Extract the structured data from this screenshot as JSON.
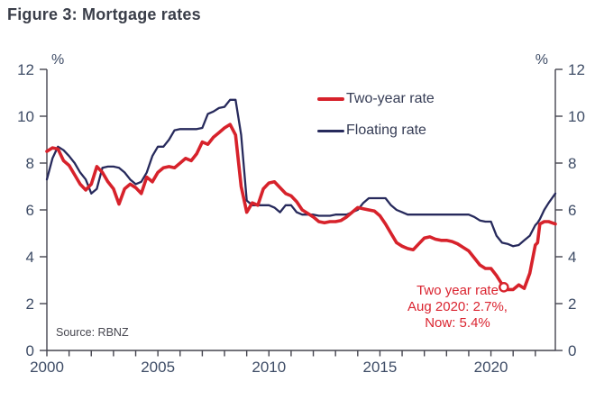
{
  "figure": {
    "title": "Figure 3: Mortgage rates",
    "source": "Source: RBNZ"
  },
  "legend": {
    "items": [
      {
        "label": "Two-year rate",
        "color": "#d7222b",
        "thickness": 4.5
      },
      {
        "label": "Floating rate",
        "color": "#272a5c",
        "thickness": 3
      }
    ]
  },
  "annotation": {
    "lines": [
      "Two year rate",
      "Aug 2020: 2.7%,",
      "Now: 5.4%"
    ],
    "color": "#da2430"
  },
  "colors": {
    "two_year_rate": "#d7222b",
    "floating_rate": "#272a5c",
    "axis_line": "#45454f",
    "axis_label": "#3e4c66",
    "title_text": "#3a3e49",
    "source_text": "#46464f"
  },
  "chart_data": {
    "type": "line",
    "title": "Figure 3: Mortgage rates",
    "ylabel_left": "%",
    "ylabel_right": "%",
    "ylim": [
      0,
      12
    ],
    "yticks": [
      0,
      2,
      4,
      6,
      8,
      10,
      12
    ],
    "xlim": [
      2000,
      2022.9
    ],
    "xticks_minor": [
      2000,
      2001,
      2002,
      2003,
      2004,
      2005,
      2006,
      2007,
      2008,
      2009,
      2010,
      2011,
      2012,
      2013,
      2014,
      2015,
      2016,
      2017,
      2018,
      2019,
      2020,
      2021,
      2022
    ],
    "xticks_labeled": [
      2000,
      2005,
      2010,
      2015,
      2020
    ],
    "grid": false,
    "legend_position": "upper-center-inside",
    "marker": {
      "series": "Two-year rate",
      "x": 2020.58,
      "y": 2.7,
      "note": "Aug 2020: 2.7%"
    },
    "series": [
      {
        "name": "Two-year rate",
        "color": "#d7222b",
        "width": 3.6,
        "x": [
          2000,
          2000.25,
          2000.5,
          2000.75,
          2001,
          2001.25,
          2001.5,
          2001.75,
          2002,
          2002.25,
          2002.5,
          2002.75,
          2003,
          2003.25,
          2003.5,
          2003.75,
          2004,
          2004.25,
          2004.5,
          2004.75,
          2005,
          2005.25,
          2005.5,
          2005.75,
          2006,
          2006.25,
          2006.5,
          2006.75,
          2007,
          2007.25,
          2007.5,
          2007.75,
          2008,
          2008.25,
          2008.5,
          2008.75,
          2009,
          2009.25,
          2009.5,
          2009.75,
          2010,
          2010.25,
          2010.5,
          2010.75,
          2011,
          2011.25,
          2011.5,
          2011.75,
          2012,
          2012.25,
          2012.5,
          2012.75,
          2013,
          2013.25,
          2013.5,
          2013.75,
          2014,
          2014.25,
          2014.5,
          2014.75,
          2015,
          2015.25,
          2015.5,
          2015.75,
          2016,
          2016.25,
          2016.5,
          2016.75,
          2017,
          2017.25,
          2017.5,
          2017.75,
          2018,
          2018.25,
          2018.5,
          2018.75,
          2019,
          2019.25,
          2019.5,
          2019.75,
          2020,
          2020.25,
          2020.58,
          2020.75,
          2021,
          2021.25,
          2021.5,
          2021.75,
          2022,
          2022.1,
          2022.2,
          2022.4,
          2022.6,
          2022.75,
          2022.9
        ],
        "y": [
          8.5,
          8.65,
          8.6,
          8.1,
          7.9,
          7.5,
          7.1,
          6.85,
          7.1,
          7.85,
          7.6,
          7.2,
          6.9,
          6.25,
          6.9,
          7.1,
          6.95,
          6.7,
          7.4,
          7.2,
          7.6,
          7.8,
          7.85,
          7.8,
          8.0,
          8.2,
          8.1,
          8.4,
          8.9,
          8.8,
          9.1,
          9.3,
          9.5,
          9.65,
          9.2,
          7.0,
          5.9,
          6.3,
          6.2,
          6.9,
          7.15,
          7.2,
          6.95,
          6.7,
          6.6,
          6.35,
          6.0,
          5.85,
          5.7,
          5.5,
          5.45,
          5.5,
          5.5,
          5.55,
          5.7,
          5.9,
          6.1,
          6.05,
          6.0,
          5.95,
          5.75,
          5.4,
          5.0,
          4.6,
          4.45,
          4.35,
          4.3,
          4.55,
          4.8,
          4.85,
          4.75,
          4.7,
          4.7,
          4.65,
          4.55,
          4.4,
          4.25,
          3.95,
          3.65,
          3.5,
          3.5,
          3.2,
          2.7,
          2.6,
          2.6,
          2.8,
          2.65,
          3.3,
          4.5,
          4.6,
          5.4,
          5.5,
          5.5,
          5.45,
          5.4
        ]
      },
      {
        "name": "Floating rate",
        "color": "#272a5c",
        "width": 2.3,
        "x": [
          2000,
          2000.25,
          2000.5,
          2000.75,
          2001,
          2001.25,
          2001.5,
          2001.75,
          2002,
          2002.25,
          2002.5,
          2002.75,
          2003,
          2003.25,
          2003.5,
          2003.75,
          2004,
          2004.25,
          2004.5,
          2004.75,
          2005,
          2005.25,
          2005.5,
          2005.75,
          2006,
          2006.25,
          2006.5,
          2006.75,
          2007,
          2007.25,
          2007.5,
          2007.75,
          2008,
          2008.25,
          2008.5,
          2008.75,
          2009,
          2009.25,
          2009.5,
          2009.75,
          2010,
          2010.25,
          2010.5,
          2010.75,
          2011,
          2011.25,
          2011.5,
          2011.75,
          2012,
          2012.25,
          2012.5,
          2012.75,
          2013,
          2013.25,
          2013.5,
          2013.75,
          2014,
          2014.25,
          2014.5,
          2014.75,
          2015,
          2015.25,
          2015.5,
          2015.75,
          2016,
          2016.25,
          2016.5,
          2016.75,
          2017,
          2017.25,
          2017.5,
          2017.75,
          2018,
          2018.25,
          2018.5,
          2018.75,
          2019,
          2019.25,
          2019.5,
          2019.75,
          2020,
          2020.25,
          2020.5,
          2020.75,
          2021,
          2021.25,
          2021.5,
          2021.75,
          2022,
          2022.1,
          2022.2,
          2022.4,
          2022.6,
          2022.75,
          2022.9
        ],
        "y": [
          7.3,
          8.2,
          8.7,
          8.55,
          8.3,
          8.0,
          7.6,
          7.3,
          6.7,
          6.9,
          7.8,
          7.85,
          7.85,
          7.8,
          7.6,
          7.3,
          7.1,
          7.2,
          7.6,
          8.3,
          8.7,
          8.7,
          9.0,
          9.4,
          9.45,
          9.45,
          9.45,
          9.45,
          9.5,
          10.1,
          10.2,
          10.35,
          10.4,
          10.7,
          10.7,
          9.2,
          6.4,
          6.2,
          6.2,
          6.2,
          6.2,
          6.1,
          5.9,
          6.2,
          6.2,
          5.9,
          5.8,
          5.8,
          5.8,
          5.75,
          5.75,
          5.75,
          5.8,
          5.8,
          5.8,
          5.9,
          6.0,
          6.3,
          6.5,
          6.5,
          6.5,
          6.5,
          6.2,
          6.0,
          5.9,
          5.8,
          5.8,
          5.8,
          5.8,
          5.8,
          5.8,
          5.8,
          5.8,
          5.8,
          5.8,
          5.8,
          5.8,
          5.7,
          5.55,
          5.5,
          5.5,
          4.9,
          4.6,
          4.55,
          4.45,
          4.5,
          4.7,
          4.9,
          5.35,
          5.45,
          5.6,
          6.0,
          6.3,
          6.5,
          6.7
        ]
      }
    ]
  }
}
